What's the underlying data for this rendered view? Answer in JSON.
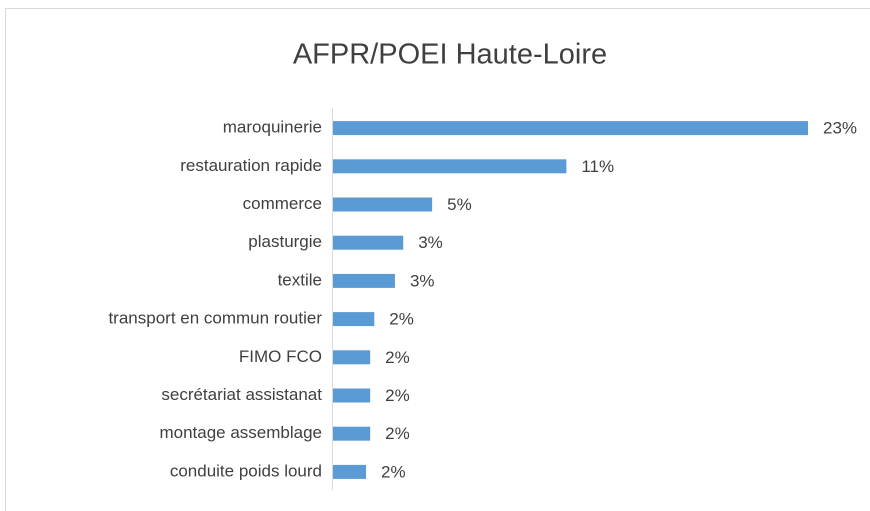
{
  "chart_data": {
    "type": "barh",
    "title": "AFPR/POEI Haute-Loire",
    "categories": [
      "maroquinerie",
      "restauration rapide",
      "commerce",
      "plasturgie",
      "textile",
      "transport en commun routier",
      "FIMO FCO",
      "secrétariat assistanat",
      "montage assemblage",
      "conduite poids lourd"
    ],
    "values": [
      23,
      11.3,
      4.8,
      3.4,
      3.0,
      2.0,
      1.8,
      1.8,
      1.8,
      1.6
    ],
    "value_labels": [
      "23%",
      "11%",
      "5%",
      "3%",
      "3%",
      "2%",
      "2%",
      "2%",
      "2%",
      "2%"
    ],
    "color": "#5b9bd5"
  }
}
